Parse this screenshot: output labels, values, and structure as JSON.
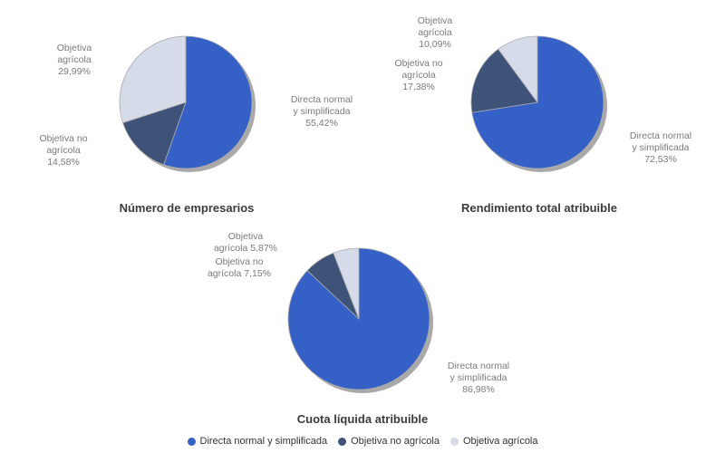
{
  "chart_data": {
    "type": "pie",
    "direction": "clockwise",
    "start_angle": "12-oclock",
    "grid": false,
    "slice_colors": [
      "#3561C6",
      "#3F5278",
      "#D6DBEA"
    ],
    "separator_color": "#ABABAB",
    "shadow_color": "#9A9A9A",
    "title_color": "#3B3B3B",
    "label_color": "#7A7A7A",
    "background": "#FFFFFF",
    "charts": [
      {
        "title": "Número de empresarios",
        "slices": [
          {
            "label": "Directa normal y simplificada",
            "value_pct": 55.42,
            "callout": "Directa normal\ny simplificada\n55,42%"
          },
          {
            "label": "Objetiva no agrícola",
            "value_pct": 14.58,
            "callout": "Objetiva no\nagrícola\n14,58%"
          },
          {
            "label": "Objetiva agrícola",
            "value_pct": 29.99,
            "callout": "Objetiva\nagrícola\n29,99%"
          }
        ]
      },
      {
        "title": "Rendimiento total atribuible",
        "slices": [
          {
            "label": "Directa normal y simplificada",
            "value_pct": 72.53,
            "callout": "Directa normal\ny simplificada\n72,53%"
          },
          {
            "label": "Objetiva no agrícola",
            "value_pct": 17.38,
            "callout": "Objetiva no\nagrícola\n17,38%"
          },
          {
            "label": "Objetiva agrícola",
            "value_pct": 10.09,
            "callout": "Objetiva\nagrícola\n10,09%"
          }
        ]
      },
      {
        "title": "Cuota líquida atribuible",
        "slices": [
          {
            "label": "Directa normal y simplificada",
            "value_pct": 86.98,
            "callout": "Directa normal\ny simplificada\n86,98%"
          },
          {
            "label": "Objetiva no agrícola",
            "value_pct": 7.15,
            "callout": "Objetiva no\nagrícola 7,15%"
          },
          {
            "label": "Objetiva agrícola",
            "value_pct": 5.87,
            "callout": "Objetiva\nagrícola 5,87%"
          }
        ]
      }
    ],
    "legend": {
      "position": "bottom",
      "entries": [
        "Directa normal y simplificada",
        "Objetiva no agrícola",
        "Objetiva agrícola"
      ]
    }
  }
}
